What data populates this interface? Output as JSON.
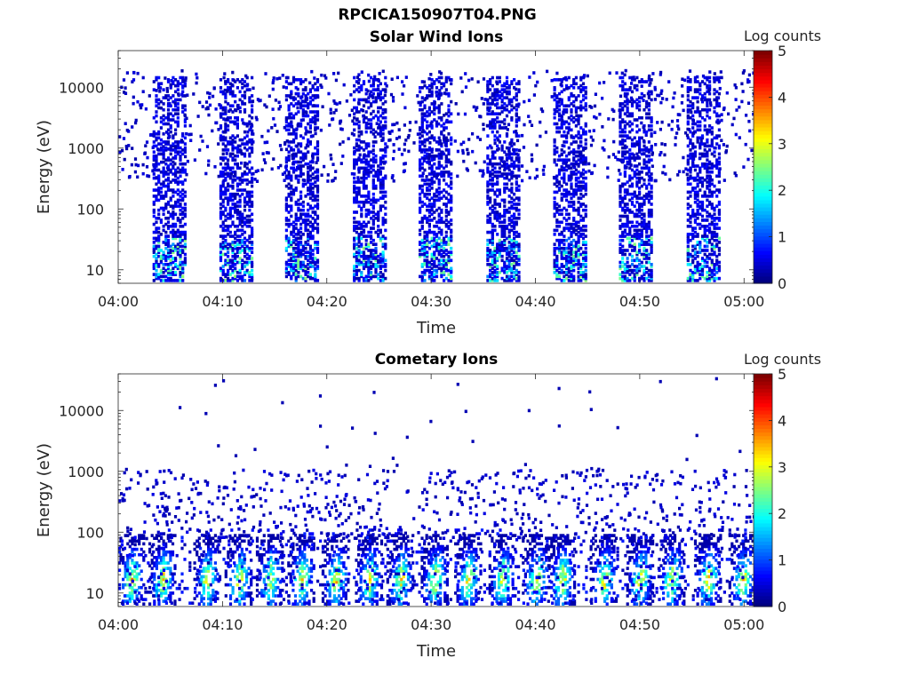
{
  "figure_title": "RPCICA150907T04.PNG",
  "colors": {
    "background": "#ffffff",
    "axes": "#262626",
    "colormap": [
      "#00008f",
      "#0000ff",
      "#0080ff",
      "#00ffff",
      "#80ff80",
      "#ffff00",
      "#ff8000",
      "#ff0000",
      "#800000"
    ]
  },
  "chart_data": [
    {
      "type": "heatmap",
      "title": "Solar Wind Ions",
      "xlabel": "Time",
      "ylabel": "Energy (eV)",
      "xlim": [
        "04:00",
        "05:01"
      ],
      "ylim": [
        6,
        40000
      ],
      "yscale": "log",
      "x_ticks": [
        "04:00",
        "04:10",
        "04:20",
        "04:30",
        "04:40",
        "04:50",
        "05:00"
      ],
      "y_ticks": [
        "10",
        "100",
        "1000",
        "10000"
      ],
      "colorbar": {
        "label": "Log counts",
        "range": [
          0,
          5
        ],
        "ticks": [
          "0",
          "1",
          "2",
          "3",
          "4",
          "5"
        ],
        "colormap": "jet"
      },
      "sweep_windows_min": [
        [
          3.3,
          6.3
        ],
        [
          9.7,
          12.7
        ],
        [
          16.0,
          19.0
        ],
        [
          22.5,
          25.5
        ],
        [
          28.8,
          32.0
        ],
        [
          35.3,
          38.3
        ],
        [
          41.7,
          44.7
        ],
        [
          48.0,
          51.0
        ],
        [
          54.5,
          57.5
        ]
      ],
      "peak_log_counts": 2.6,
      "background_scatter_energy_eV": [
        300,
        20000
      ]
    },
    {
      "type": "heatmap",
      "title": "Cometary Ions",
      "xlabel": "Time",
      "ylabel": "Energy (eV)",
      "xlim": [
        "04:00",
        "05:01"
      ],
      "ylim": [
        6,
        40000
      ],
      "yscale": "log",
      "x_ticks": [
        "04:00",
        "04:10",
        "04:20",
        "04:30",
        "04:40",
        "04:50",
        "05:00"
      ],
      "y_ticks": [
        "10",
        "100",
        "1000",
        "10000"
      ],
      "colorbar": {
        "label": "Log counts",
        "range": [
          0,
          5
        ],
        "ticks": [
          "0",
          "1",
          "2",
          "3",
          "4",
          "5"
        ],
        "colormap": "jet"
      },
      "bursts_min": [
        1.2,
        4.2,
        8.5,
        11.5,
        14.5,
        17.5,
        20.8,
        24.0,
        27.0,
        30.3,
        33.5,
        36.8,
        40.0,
        42.5,
        46.5,
        50.0,
        53.0,
        56.5,
        59.8
      ],
      "peak_log_counts": 4.1,
      "core_energy_eV": [
        10,
        80
      ]
    }
  ]
}
